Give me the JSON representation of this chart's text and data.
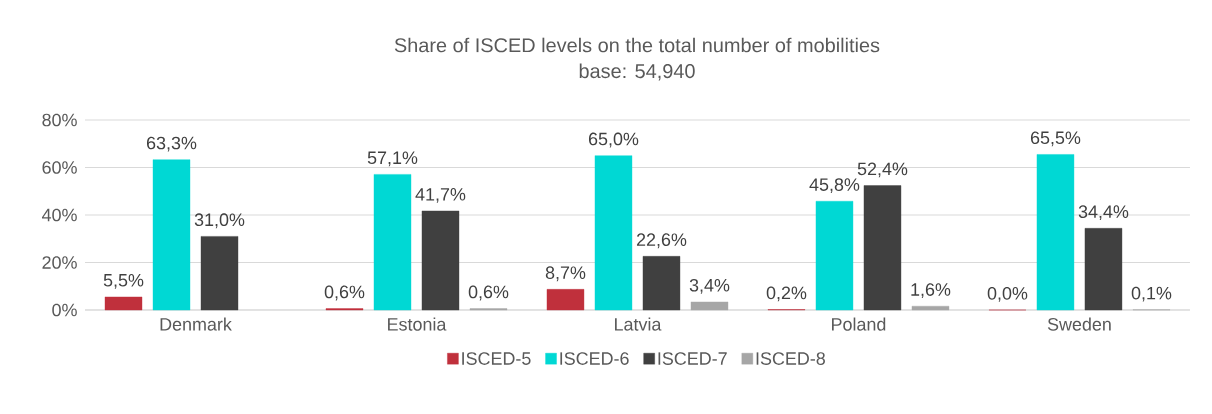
{
  "chart_data": {
    "type": "bar",
    "title": "Share of ISCED levels on the total number of mobilities",
    "subtitle": "base: 54,940",
    "categories": [
      "Denmark",
      "Estonia",
      "Latvia",
      "Poland",
      "Sweden"
    ],
    "series": [
      {
        "name": "ISCED-5",
        "color": "#c0303c",
        "values": [
          5.5,
          0.6,
          8.7,
          0.2,
          0.0
        ],
        "value_labels": [
          "5,5%",
          "0,6%",
          "8,7%",
          "0,2%",
          "0,0%"
        ]
      },
      {
        "name": "ISCED-6",
        "color": "#00d8d4",
        "values": [
          63.3,
          57.1,
          65.0,
          45.8,
          65.5
        ],
        "value_labels": [
          "63,3%",
          "57,1%",
          "65,0%",
          "45,8%",
          "65,5%"
        ]
      },
      {
        "name": "ISCED-7",
        "color": "#404040",
        "values": [
          31.0,
          41.7,
          22.6,
          52.4,
          34.4
        ],
        "value_labels": [
          "31,0%",
          "41,7%",
          "22,6%",
          "52,4%",
          "34,4%"
        ]
      },
      {
        "name": "ISCED-8",
        "color": "#a6a6a6",
        "values": [
          null,
          0.6,
          3.4,
          1.6,
          0.1
        ],
        "value_labels": [
          null,
          "0,6%",
          "3,4%",
          "1,6%",
          "0,1%"
        ]
      }
    ],
    "ylim": [
      0,
      80
    ],
    "yticks": [
      {
        "value": 0,
        "label": "0%"
      },
      {
        "value": 20,
        "label": "20%"
      },
      {
        "value": 40,
        "label": "40%"
      },
      {
        "value": 60,
        "label": "60%"
      },
      {
        "value": 80,
        "label": "80%"
      }
    ],
    "grid": "y",
    "legend": "bottom"
  }
}
